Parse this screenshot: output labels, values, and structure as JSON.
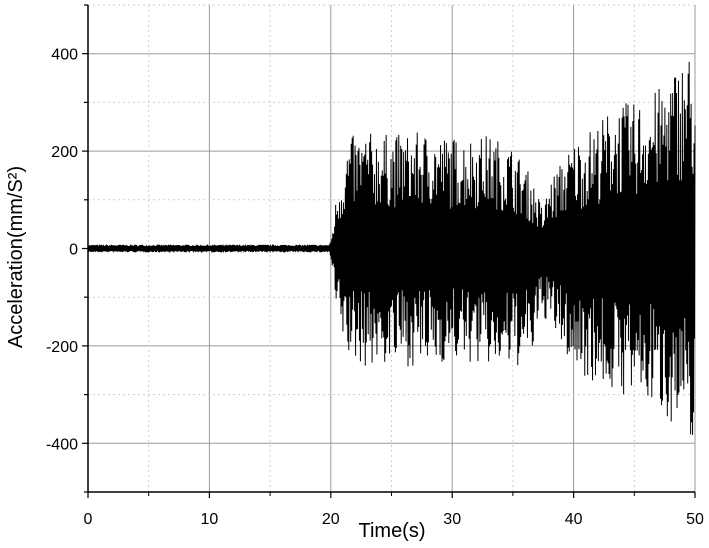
{
  "chart_data": {
    "type": "line",
    "title": "",
    "xlabel": "Time(s)",
    "ylabel": "Acceleration(mm/S²)",
    "xlim": [
      0,
      50
    ],
    "ylim": [
      -500,
      500
    ],
    "x_ticks": [
      0,
      10,
      20,
      30,
      40,
      50
    ],
    "y_ticks": [
      -400,
      -200,
      0,
      200,
      400
    ],
    "x_tick_labels": [
      "0",
      "10",
      "20",
      "30",
      "40",
      "50"
    ],
    "y_tick_labels": [
      "-400",
      "-200",
      "0",
      "200",
      "400"
    ],
    "grid": true,
    "legend": "none",
    "line_color": "#000000",
    "series": [
      {
        "description": "oscillating acceleration signal; amplitude envelope (peak |a|) vs time",
        "envelope": {
          "x": [
            0,
            10,
            19.9,
            20.1,
            20.5,
            21.5,
            23,
            25,
            28,
            30,
            33,
            35,
            36.5,
            37.5,
            38,
            40,
            42,
            43.5,
            45,
            47,
            48.5,
            49.5,
            50
          ],
          "upper": [
            8,
            8,
            8,
            30,
            120,
            230,
            240,
            235,
            240,
            230,
            235,
            210,
            150,
            80,
            140,
            220,
            260,
            300,
            300,
            330,
            380,
            410,
            350
          ],
          "lower": [
            -8,
            -8,
            -8,
            -40,
            -150,
            -230,
            -245,
            -240,
            -245,
            -230,
            -245,
            -250,
            -230,
            -140,
            -160,
            -250,
            -280,
            -300,
            -310,
            -330,
            -370,
            -410,
            -380
          ]
        }
      }
    ]
  }
}
